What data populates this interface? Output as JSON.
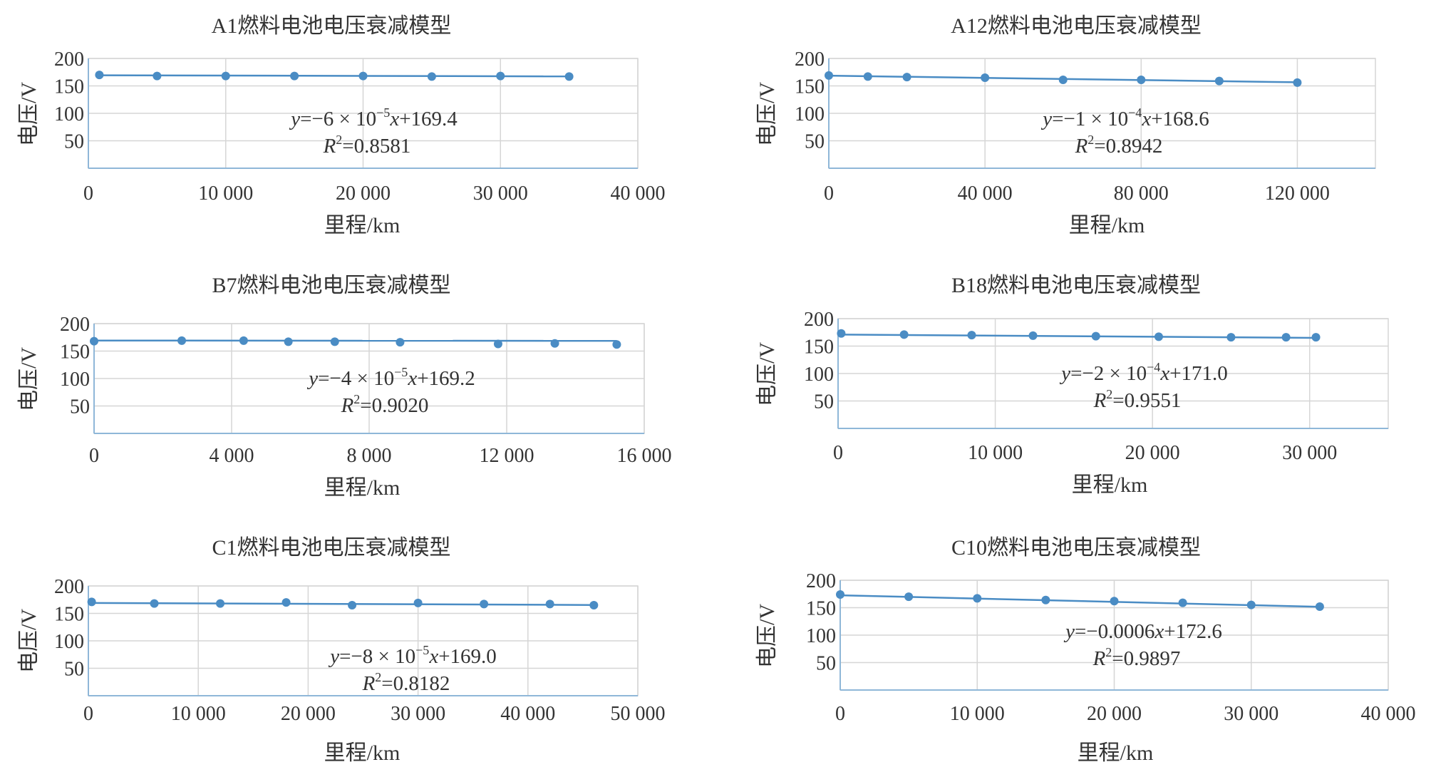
{
  "chart_data": [
    {
      "type": "scatter",
      "title": "A1燃料电池电压衰减模型",
      "xlabel": "里程/km",
      "ylabel": "电压/V",
      "xlim": [
        0,
        40000
      ],
      "ylim": [
        0,
        200
      ],
      "xticks": [
        "0",
        "10 000",
        "20 000",
        "30 000",
        "40 000"
      ],
      "yticks": [
        "50",
        "100",
        "150",
        "200"
      ],
      "points": {
        "x": [
          800,
          5000,
          10000,
          15000,
          20000,
          25000,
          30000,
          35000
        ],
        "y": [
          170,
          168,
          168,
          168,
          168,
          167,
          168,
          167
        ]
      },
      "trendline": {
        "slope": -6e-05,
        "intercept": 169.4
      },
      "equation": "y=−6 × 10⁻⁵x+169.4",
      "r2": "R²=0.8581"
    },
    {
      "type": "scatter",
      "title": "A12燃料电池电压衰减模型",
      "xlabel": "里程/km",
      "ylabel": "电压/V",
      "xlim": [
        0,
        140000
      ],
      "ylim": [
        0,
        200
      ],
      "xticks": [
        "0",
        "40 000",
        "80 000",
        "120 000"
      ],
      "yticks": [
        "50",
        "100",
        "150",
        "200"
      ],
      "points": {
        "x": [
          0,
          10000,
          20000,
          40000,
          60000,
          80000,
          100000,
          120000
        ],
        "y": [
          169,
          167,
          166,
          165,
          161,
          161,
          159,
          156
        ]
      },
      "trendline": {
        "slope": -0.0001,
        "intercept": 168.6
      },
      "equation": "y=−1 × 10⁻⁴x+168.6",
      "r2": "R²=0.8942"
    },
    {
      "type": "scatter",
      "title": "B7燃料电池电压衰减模型",
      "xlabel": "里程/km",
      "ylabel": "电压/V",
      "xlim": [
        0,
        16000
      ],
      "ylim": [
        0,
        200
      ],
      "xticks": [
        "0",
        "4 000",
        "8 000",
        "12 000",
        "16 000"
      ],
      "yticks": [
        "50",
        "100",
        "150",
        "200"
      ],
      "points": {
        "x": [
          0,
          2550,
          4350,
          5650,
          7000,
          8900,
          11750,
          13400,
          15200
        ],
        "y": [
          168,
          169,
          169,
          167,
          167,
          166,
          163,
          164,
          162
        ]
      },
      "trendline": {
        "slope": -4e-05,
        "intercept": 169.2
      },
      "equation": "y=−4 × 10⁻⁵x+169.2",
      "r2": "R²=0.9020"
    },
    {
      "type": "scatter",
      "title": "B18燃料电池电压衰减模型",
      "xlabel": "里程/km",
      "ylabel": "电压/V",
      "xlim": [
        0,
        35000
      ],
      "ylim": [
        0,
        200
      ],
      "xticks": [
        "0",
        "10 000",
        "20 000",
        "30 000"
      ],
      "yticks": [
        "50",
        "100",
        "150",
        "200"
      ],
      "points": {
        "x": [
          200,
          4200,
          8500,
          12400,
          16400,
          20400,
          25000,
          28500,
          30400
        ],
        "y": [
          173,
          171,
          170,
          169,
          168,
          167,
          166,
          166,
          166
        ]
      },
      "trendline": {
        "slope": -0.0002,
        "intercept": 171.0
      },
      "equation": "y=−2 × 10⁻⁴x+171.0",
      "r2": "R²=0.9551"
    },
    {
      "type": "scatter",
      "title": "C1燃料电池电压衰减模型",
      "xlabel": "里程/km",
      "ylabel": "电压/V",
      "xlim": [
        0,
        50000
      ],
      "ylim": [
        0,
        200
      ],
      "xticks": [
        "0",
        "10 000",
        "20 000",
        "30 000",
        "40 000",
        "50 000"
      ],
      "yticks": [
        "50",
        "100",
        "150",
        "200"
      ],
      "points": {
        "x": [
          300,
          6000,
          12000,
          18000,
          24000,
          30000,
          36000,
          42000,
          46000
        ],
        "y": [
          171,
          168,
          168,
          170,
          165,
          169,
          167,
          167,
          165
        ]
      },
      "trendline": {
        "slope": -8e-05,
        "intercept": 169.0
      },
      "equation": "y=−8 × 10⁻⁵x+169.0",
      "r2": "R²=0.8182"
    },
    {
      "type": "scatter",
      "title": "C10燃料电池电压衰减模型",
      "xlabel": "里程/km",
      "ylabel": "电压/V",
      "xlim": [
        0,
        40000
      ],
      "ylim": [
        0,
        200
      ],
      "xticks": [
        "0",
        "10 000",
        "20 000",
        "30 000",
        "40 000"
      ],
      "yticks": [
        "50",
        "100",
        "150",
        "200"
      ],
      "points": {
        "x": [
          0,
          5000,
          10000,
          15000,
          20000,
          25000,
          30000,
          35000
        ],
        "y": [
          174,
          170,
          167,
          164,
          162,
          159,
          155,
          152
        ]
      },
      "trendline": {
        "slope": -0.0006,
        "intercept": 172.6
      },
      "equation": "y=−0.0006x+172.6",
      "r2": "R²=0.9897"
    }
  ]
}
